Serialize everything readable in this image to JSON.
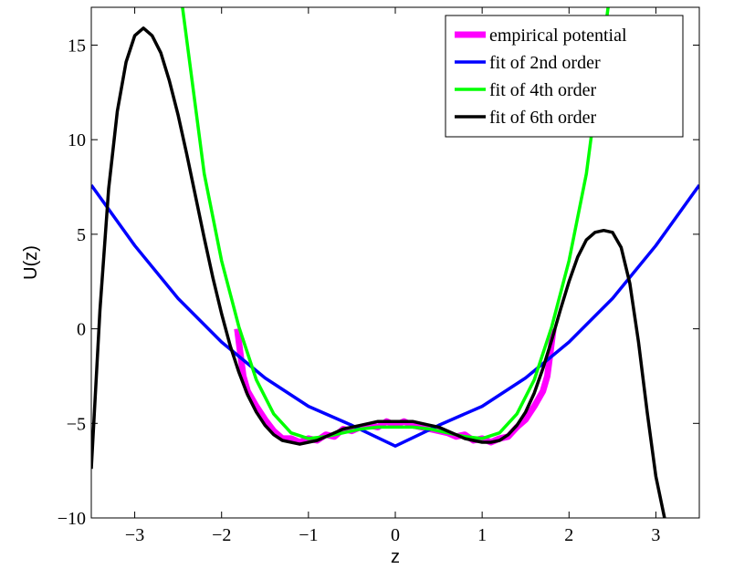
{
  "chart_data": {
    "type": "line",
    "title": "",
    "xlabel": "z",
    "ylabel": "U(z)",
    "xlim": [
      -3.5,
      3.5
    ],
    "ylim": [
      -10,
      17
    ],
    "xticks": [
      -3,
      -2,
      -1,
      0,
      1,
      2,
      3
    ],
    "yticks": [
      -10,
      -5,
      0,
      5,
      10,
      15
    ],
    "xtick_labels": [
      "−3",
      "−2",
      "−1",
      "0",
      "1",
      "2",
      "3"
    ],
    "ytick_labels": [
      "−10",
      "−5",
      "0",
      "5",
      "10",
      "15"
    ],
    "grid": false,
    "legend_position": "top-right",
    "series": [
      {
        "name": "empirical potential",
        "color": "#ff00ff",
        "x": [
          -1.82,
          -1.75,
          -1.7,
          -1.6,
          -1.5,
          -1.4,
          -1.3,
          -1.2,
          -1.1,
          -1.0,
          -0.9,
          -0.8,
          -0.7,
          -0.6,
          -0.5,
          -0.4,
          -0.3,
          -0.2,
          -0.1,
          0.0,
          0.1,
          0.2,
          0.3,
          0.4,
          0.5,
          0.6,
          0.7,
          0.8,
          0.9,
          1.0,
          1.1,
          1.2,
          1.3,
          1.4,
          1.5,
          1.6,
          1.7,
          1.75,
          1.82
        ],
        "y": [
          0.0,
          -2.5,
          -3.3,
          -4.1,
          -4.8,
          -5.4,
          -5.8,
          -5.8,
          -6.0,
          -5.8,
          -5.9,
          -5.6,
          -5.7,
          -5.3,
          -5.4,
          -5.2,
          -5.1,
          -5.2,
          -4.9,
          -5.1,
          -4.9,
          -5.1,
          -5.2,
          -5.3,
          -5.4,
          -5.5,
          -5.7,
          -5.6,
          -5.9,
          -5.8,
          -6.0,
          -5.8,
          -5.7,
          -5.2,
          -4.8,
          -4.1,
          -3.3,
          -2.5,
          0.0
        ]
      },
      {
        "name": "fit of 2nd order",
        "color": "#0000ff",
        "x": [
          -3.5,
          -3.0,
          -2.5,
          -2.0,
          -1.5,
          -1.0,
          -0.5,
          0.0,
          0.5,
          1.0,
          1.5,
          2.0,
          2.5,
          3.0,
          3.5
        ],
        "y": [
          7.6,
          4.4,
          1.6,
          -0.7,
          -2.6,
          -4.1,
          -5.1,
          -6.2,
          -5.1,
          -4.1,
          -2.6,
          -0.7,
          1.6,
          4.4,
          7.6
        ]
      },
      {
        "name": "fit of 4th order",
        "color": "#00ff00",
        "x": [
          -2.45,
          -2.2,
          -2.0,
          -1.8,
          -1.6,
          -1.4,
          -1.2,
          -1.0,
          -0.8,
          -0.6,
          -0.4,
          -0.2,
          0.0,
          0.2,
          0.4,
          0.6,
          0.8,
          1.0,
          1.2,
          1.4,
          1.6,
          1.8,
          2.0,
          2.2,
          2.45
        ],
        "y": [
          17.0,
          8.2,
          3.6,
          0.1,
          -2.7,
          -4.5,
          -5.5,
          -5.8,
          -5.7,
          -5.5,
          -5.3,
          -5.2,
          -5.2,
          -5.2,
          -5.3,
          -5.5,
          -5.7,
          -5.8,
          -5.5,
          -4.5,
          -2.7,
          0.1,
          3.6,
          8.2,
          17.0
        ]
      },
      {
        "name": "fit of 6th order",
        "color": "#000000",
        "x": [
          -3.5,
          -3.4,
          -3.3,
          -3.2,
          -3.1,
          -3.0,
          -2.9,
          -2.8,
          -2.7,
          -2.6,
          -2.5,
          -2.4,
          -2.3,
          -2.2,
          -2.1,
          -2.0,
          -1.9,
          -1.8,
          -1.7,
          -1.6,
          -1.5,
          -1.4,
          -1.3,
          -1.2,
          -1.1,
          -1.0,
          -0.9,
          -0.8,
          -0.7,
          -0.6,
          -0.5,
          -0.4,
          -0.3,
          -0.2,
          -0.1,
          0.0,
          0.1,
          0.2,
          0.3,
          0.4,
          0.5,
          0.6,
          0.7,
          0.8,
          0.9,
          1.0,
          1.1,
          1.2,
          1.3,
          1.4,
          1.5,
          1.6,
          1.7,
          1.8,
          1.9,
          2.0,
          2.1,
          2.2,
          2.3,
          2.4,
          2.5,
          2.6,
          2.7,
          2.8,
          2.9,
          3.0,
          3.1
        ],
        "y": [
          -7.4,
          1.0,
          7.4,
          11.5,
          14.1,
          15.5,
          15.9,
          15.5,
          14.6,
          13.1,
          11.3,
          9.2,
          7.0,
          4.8,
          2.7,
          0.8,
          -0.9,
          -2.3,
          -3.5,
          -4.4,
          -5.1,
          -5.6,
          -5.9,
          -6.0,
          -6.1,
          -6.0,
          -5.9,
          -5.7,
          -5.5,
          -5.3,
          -5.2,
          -5.1,
          -5.0,
          -4.9,
          -4.9,
          -4.9,
          -4.9,
          -4.9,
          -5.0,
          -5.1,
          -5.2,
          -5.4,
          -5.6,
          -5.8,
          -5.9,
          -6.0,
          -6.0,
          -5.9,
          -5.6,
          -5.1,
          -4.4,
          -3.4,
          -2.1,
          -0.6,
          1.0,
          2.5,
          3.8,
          4.7,
          5.1,
          5.2,
          5.1,
          4.3,
          2.4,
          -0.7,
          -4.4,
          -7.8,
          -10.0
        ]
      }
    ]
  }
}
